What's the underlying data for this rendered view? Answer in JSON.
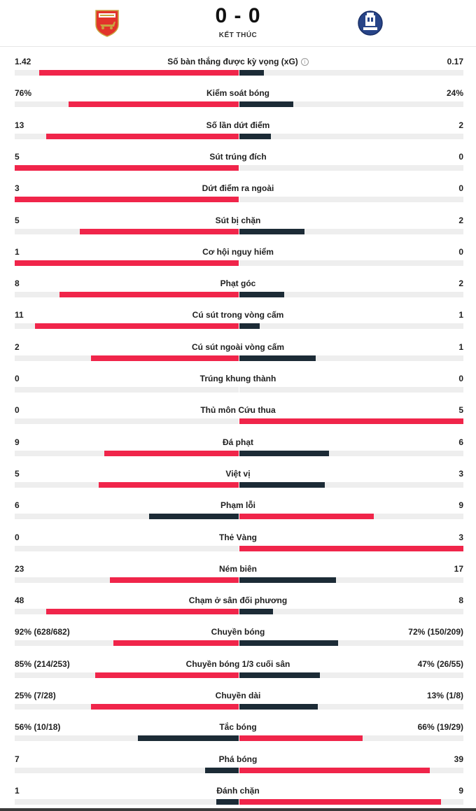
{
  "colors": {
    "accent": "#f0254a",
    "dark": "#1c2b36",
    "track": "#eeeeee"
  },
  "match": {
    "score": "0 - 0",
    "status": "KẾT THÚC",
    "home_logo_icon": "arsenal-crest-icon",
    "away_logo_icon": "everton-crest-icon"
  },
  "stats": [
    {
      "name": "Số bàn thắng được kỳ vọng (xG)",
      "home": "1.42",
      "away": "0.17",
      "home_frac": 0.89,
      "away_frac": 0.11,
      "home_color": "accent",
      "away_color": "dark",
      "info": true
    },
    {
      "name": "Kiểm soát bóng",
      "home": "76%",
      "away": "24%",
      "home_frac": 0.76,
      "away_frac": 0.24,
      "home_color": "accent",
      "away_color": "dark"
    },
    {
      "name": "Số lần dứt điểm",
      "home": "13",
      "away": "2",
      "home_frac": 0.86,
      "away_frac": 0.14,
      "home_color": "accent",
      "away_color": "dark"
    },
    {
      "name": "Sút trúng đích",
      "home": "5",
      "away": "0",
      "home_frac": 1.0,
      "away_frac": 0.0,
      "home_color": "accent",
      "away_color": "dark"
    },
    {
      "name": "Dứt điểm ra ngoài",
      "home": "3",
      "away": "0",
      "home_frac": 1.0,
      "away_frac": 0.0,
      "home_color": "accent",
      "away_color": "dark"
    },
    {
      "name": "Sút bị chặn",
      "home": "5",
      "away": "2",
      "home_frac": 0.71,
      "away_frac": 0.29,
      "home_color": "accent",
      "away_color": "dark"
    },
    {
      "name": "Cơ hội nguy hiểm",
      "home": "1",
      "away": "0",
      "home_frac": 1.0,
      "away_frac": 0.0,
      "home_color": "accent",
      "away_color": "dark"
    },
    {
      "name": "Phạt góc",
      "home": "8",
      "away": "2",
      "home_frac": 0.8,
      "away_frac": 0.2,
      "home_color": "accent",
      "away_color": "dark"
    },
    {
      "name": "Cú sút trong vòng cấm",
      "home": "11",
      "away": "1",
      "home_frac": 0.91,
      "away_frac": 0.09,
      "home_color": "accent",
      "away_color": "dark"
    },
    {
      "name": "Cú sút ngoài vòng cấm",
      "home": "2",
      "away": "1",
      "home_frac": 0.66,
      "away_frac": 0.34,
      "home_color": "accent",
      "away_color": "dark"
    },
    {
      "name": "Trúng khung thành",
      "home": "0",
      "away": "0",
      "home_frac": 0.0,
      "away_frac": 0.0,
      "home_color": "accent",
      "away_color": "dark"
    },
    {
      "name": "Thủ môn Cứu thua",
      "home": "0",
      "away": "5",
      "home_frac": 0.0,
      "away_frac": 1.0,
      "home_color": "dark",
      "away_color": "accent"
    },
    {
      "name": "Đá phạt",
      "home": "9",
      "away": "6",
      "home_frac": 0.6,
      "away_frac": 0.4,
      "home_color": "accent",
      "away_color": "dark"
    },
    {
      "name": "Việt vị",
      "home": "5",
      "away": "3",
      "home_frac": 0.625,
      "away_frac": 0.38,
      "home_color": "accent",
      "away_color": "dark"
    },
    {
      "name": "Phạm lỗi",
      "home": "6",
      "away": "9",
      "home_frac": 0.4,
      "away_frac": 0.6,
      "home_color": "dark",
      "away_color": "accent"
    },
    {
      "name": "Thẻ Vàng",
      "home": "0",
      "away": "3",
      "home_frac": 0.0,
      "away_frac": 1.0,
      "home_color": "dark",
      "away_color": "accent"
    },
    {
      "name": "Ném biên",
      "home": "23",
      "away": "17",
      "home_frac": 0.575,
      "away_frac": 0.43,
      "home_color": "accent",
      "away_color": "dark"
    },
    {
      "name": "Chạm ở sân đối phương",
      "home": "48",
      "away": "8",
      "home_frac": 0.86,
      "away_frac": 0.15,
      "home_color": "accent",
      "away_color": "dark"
    },
    {
      "name": "Chuyền bóng",
      "home": "92% (628/682)",
      "away": "72% (150/209)",
      "home_frac": 0.56,
      "away_frac": 0.44,
      "home_color": "accent",
      "away_color": "dark"
    },
    {
      "name": "Chuyền bóng 1/3 cuối sân",
      "home": "85% (214/253)",
      "away": "47% (26/55)",
      "home_frac": 0.64,
      "away_frac": 0.36,
      "home_color": "accent",
      "away_color": "dark"
    },
    {
      "name": "Chuyền dài",
      "home": "25% (7/28)",
      "away": "13% (1/8)",
      "home_frac": 0.66,
      "away_frac": 0.35,
      "home_color": "accent",
      "away_color": "dark"
    },
    {
      "name": "Tắc bóng",
      "home": "56% (10/18)",
      "away": "66% (19/29)",
      "home_frac": 0.45,
      "away_frac": 0.55,
      "home_color": "dark",
      "away_color": "accent"
    },
    {
      "name": "Phá bóng",
      "home": "7",
      "away": "39",
      "home_frac": 0.15,
      "away_frac": 0.85,
      "home_color": "dark",
      "away_color": "accent"
    },
    {
      "name": "Đánh chặn",
      "home": "1",
      "away": "9",
      "home_frac": 0.1,
      "away_frac": 0.9,
      "home_color": "dark",
      "away_color": "accent"
    }
  ]
}
